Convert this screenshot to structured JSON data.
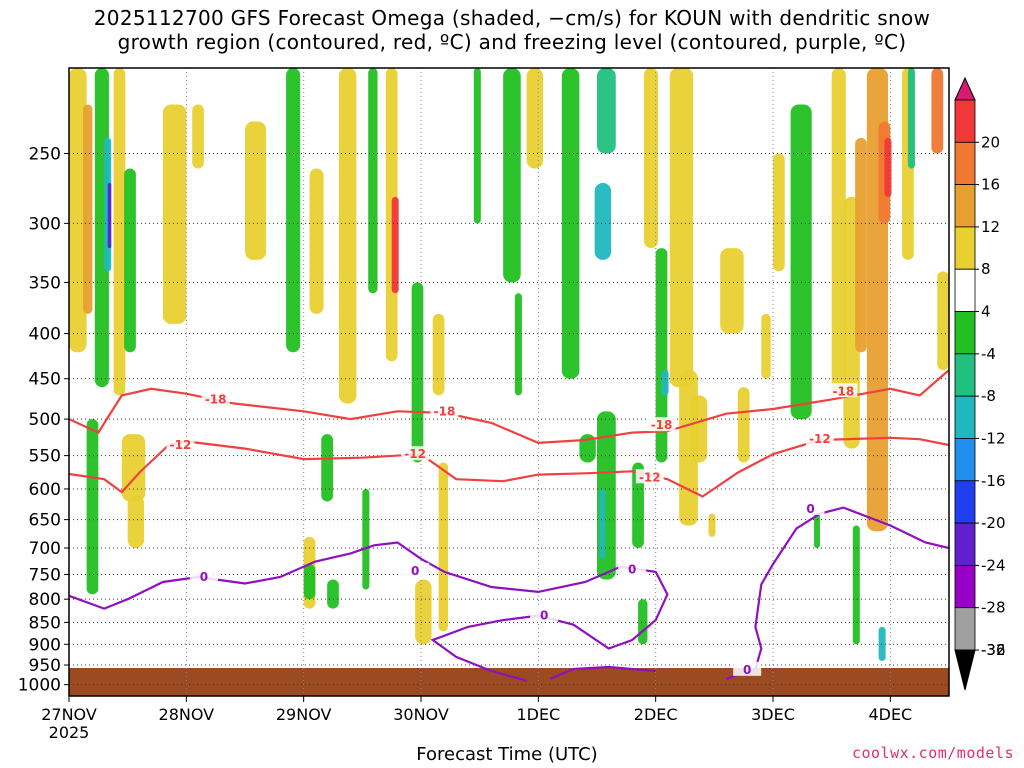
{
  "title": {
    "line1": "2025112700 GFS Forecast Omega (shaded, −cm/s) for KOUN with dendritic snow",
    "line2": "growth region (contoured, red, ºC) and freezing level (contoured, purple, ºC)"
  },
  "watermark": "coolwx.com/models",
  "chart_data": {
    "type": "heatmap",
    "xlabel": "Forecast Time (UTC)",
    "ylabel": "",
    "x_ticks": [
      "27NOV",
      "28NOV",
      "29NOV",
      "30NOV",
      "1DEC",
      "2DEC",
      "3DEC",
      "4DEC"
    ],
    "x_tick_sub": "2025",
    "x_range_days": [
      0,
      7.5
    ],
    "y_ticks": [
      250,
      300,
      350,
      400,
      450,
      500,
      550,
      600,
      650,
      700,
      750,
      800,
      850,
      900,
      950,
      1000
    ],
    "y_range_hpa": [
      200,
      1030
    ],
    "y_scale": "log-pressure",
    "grid": true,
    "colorbar": {
      "labels": [
        "20",
        "16",
        "12",
        "8",
        "4",
        "-4",
        "-8",
        "-12",
        "-16",
        "-20",
        "-24",
        "-28",
        "-32",
        "-36"
      ],
      "colors": [
        "#d81b70",
        "#f03838",
        "#f07830",
        "#e6a030",
        "#e8d030",
        "#ffffff",
        "#22c022",
        "#20c080",
        "#20b8c0",
        "#2090f0",
        "#2040f0",
        "#6020d0",
        "#9800c8",
        "#a0a0a0",
        "#000000"
      ]
    },
    "contours": [
      {
        "name": "-18",
        "color": "#f04040",
        "points": [
          [
            0,
            500
          ],
          [
            0.25,
            518
          ],
          [
            0.45,
            470
          ],
          [
            0.7,
            462
          ],
          [
            1.0,
            468
          ],
          [
            1.4,
            480
          ],
          [
            2.0,
            490
          ],
          [
            2.4,
            500
          ],
          [
            2.8,
            490
          ],
          [
            3.2,
            492
          ],
          [
            3.6,
            505
          ],
          [
            4.0,
            532
          ],
          [
            4.4,
            528
          ],
          [
            4.8,
            518
          ],
          [
            5.1,
            516
          ],
          [
            5.6,
            493
          ],
          [
            6.0,
            487
          ],
          [
            6.5,
            475
          ],
          [
            7.0,
            462
          ],
          [
            7.25,
            470
          ],
          [
            7.5,
            440
          ]
        ],
        "labels": [
          [
            1.25,
            475
          ],
          [
            3.2,
            490
          ],
          [
            5.05,
            508
          ],
          [
            6.6,
            465
          ]
        ]
      },
      {
        "name": "-12",
        "color": "#f04040",
        "points": [
          [
            0,
            577
          ],
          [
            0.3,
            585
          ],
          [
            0.45,
            605
          ],
          [
            0.6,
            575
          ],
          [
            0.85,
            535
          ],
          [
            1.0,
            530
          ],
          [
            1.5,
            540
          ],
          [
            2.0,
            555
          ],
          [
            2.5,
            553
          ],
          [
            3.0,
            548
          ],
          [
            3.3,
            585
          ],
          [
            3.7,
            588
          ],
          [
            4.0,
            578
          ],
          [
            4.4,
            576
          ],
          [
            4.8,
            573
          ],
          [
            5.1,
            585
          ],
          [
            5.4,
            612
          ],
          [
            5.7,
            575
          ],
          [
            6.0,
            548
          ],
          [
            6.4,
            528
          ],
          [
            7.0,
            525
          ],
          [
            7.25,
            527
          ],
          [
            7.5,
            535
          ]
        ],
        "labels": [
          [
            0.95,
            535
          ],
          [
            2.95,
            548
          ],
          [
            4.95,
            582
          ],
          [
            6.4,
            527
          ]
        ]
      },
      {
        "name": "0 (upper)",
        "color": "#9010c0",
        "points": [
          [
            0,
            793
          ],
          [
            0.3,
            820
          ],
          [
            0.5,
            800
          ],
          [
            0.8,
            765
          ],
          [
            1.1,
            755
          ],
          [
            1.5,
            768
          ],
          [
            1.8,
            755
          ],
          [
            2.1,
            725
          ],
          [
            2.4,
            710
          ],
          [
            2.6,
            695
          ],
          [
            2.8,
            690
          ],
          [
            3.0,
            720
          ],
          [
            3.2,
            745
          ],
          [
            3.6,
            775
          ],
          [
            4.0,
            785
          ],
          [
            4.4,
            765
          ],
          [
            4.7,
            735
          ],
          [
            5.0,
            745
          ],
          [
            5.1,
            790
          ],
          [
            5.0,
            845
          ],
          [
            4.8,
            890
          ],
          [
            4.6,
            910
          ],
          [
            4.3,
            855
          ],
          [
            4.0,
            835
          ],
          [
            3.7,
            845
          ],
          [
            3.4,
            860
          ],
          [
            3.2,
            880
          ],
          [
            3.1,
            890
          ],
          [
            3.3,
            930
          ],
          [
            3.6,
            965
          ],
          [
            3.9,
            990
          ]
        ],
        "labels": [
          [
            1.15,
            755
          ],
          [
            2.95,
            743
          ],
          [
            4.05,
            835
          ],
          [
            4.8,
            740
          ]
        ]
      },
      {
        "name": "0 (lower)",
        "color": "#9010c0",
        "points": [
          [
            4.1,
            985
          ],
          [
            4.3,
            960
          ],
          [
            4.6,
            955
          ],
          [
            4.8,
            960
          ],
          [
            5.0,
            965
          ]
        ],
        "labels": []
      },
      {
        "name": "0 (right)",
        "color": "#9010c0",
        "points": [
          [
            7.5,
            700
          ],
          [
            7.3,
            690
          ],
          [
            7.0,
            660
          ],
          [
            6.6,
            630
          ],
          [
            6.4,
            640
          ],
          [
            6.2,
            665
          ],
          [
            6.0,
            730
          ],
          [
            5.9,
            770
          ],
          [
            5.85,
            860
          ],
          [
            5.9,
            910
          ],
          [
            5.85,
            960
          ],
          [
            5.6,
            985
          ]
        ],
        "labels": [
          [
            6.32,
            632
          ],
          [
            5.78,
            962
          ]
        ]
      }
    ]
  }
}
